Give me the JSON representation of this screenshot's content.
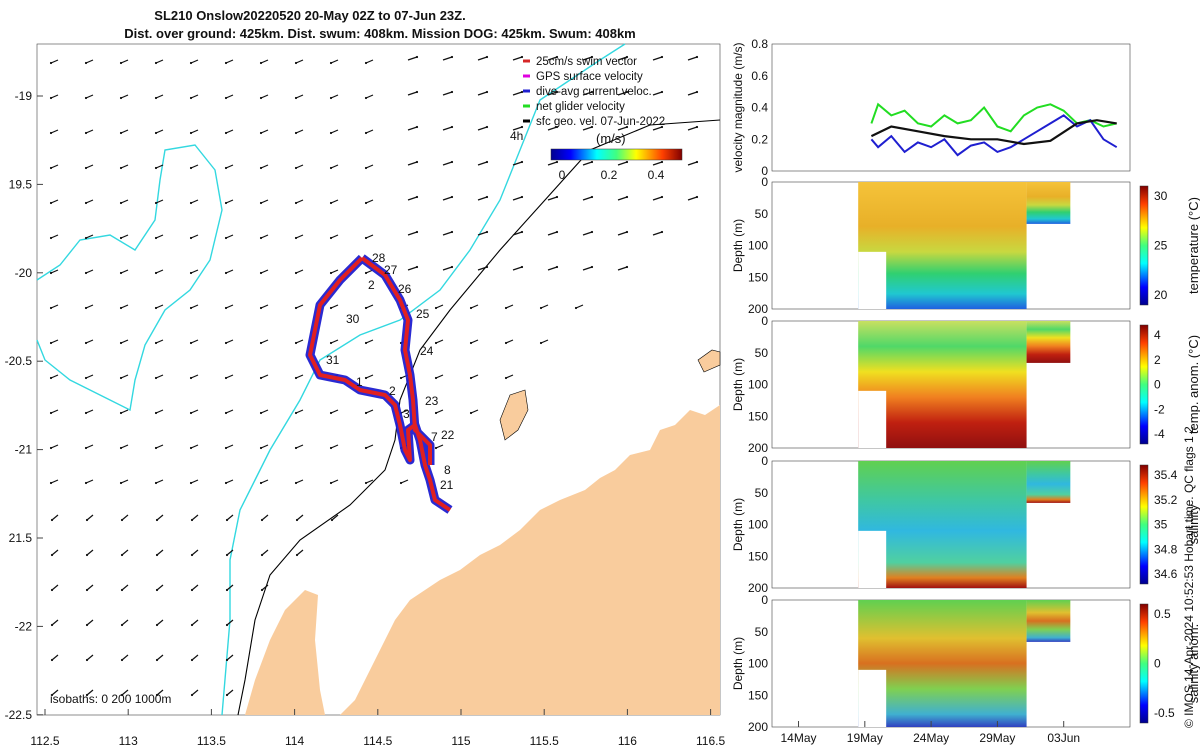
{
  "title_line1": "SL210 Onslow20220520 20-May 02Z to 07-Jun 23Z.",
  "title_line2": "Dist. over ground: 425km. Dist. swum: 408km. Mission DOG: 425km. Swum: 408km",
  "map": {
    "lon_ticks": [
      "112.5",
      "113",
      "113.5",
      "114",
      "114.5",
      "115",
      "115.5",
      "116",
      "116.5"
    ],
    "lat_ticks": [
      "-19",
      "19.5",
      "-20",
      "-20.5",
      "-21",
      "21.5",
      "-22",
      "-22.5"
    ],
    "legend": [
      "25cm/s swim vector",
      "GPS surface velocity",
      "dive-avg current veloc.",
      "net glider velocity",
      "sfc geo. vel. 07-Jun-2022"
    ],
    "legend_colors": [
      "#d62728",
      "#e000e0",
      "#1f1fd0",
      "#22dd22",
      "#000000"
    ],
    "colorbar_label": "(m/s)",
    "colorbar_ticks": [
      "0",
      "0.2",
      "0.4"
    ],
    "time_label": "4h",
    "isobaths_label": "isobaths: 0   200  1000m",
    "day_labels": [
      "28",
      "27",
      "2",
      "26",
      "30",
      "25",
      "24",
      "31",
      "1",
      "2",
      "23",
      "3",
      "22",
      "7",
      "8",
      "21"
    ]
  },
  "chart_data": [
    {
      "type": "line",
      "ylabel": "velocity magnitude (m/s)",
      "ylim": [
        0,
        0.8
      ],
      "yticks": [
        "0",
        "0.2",
        "0.4",
        "0.6",
        "0.8"
      ],
      "series": [
        {
          "name": "net glider velocity",
          "color": "#22dd22",
          "x": [
            19.5,
            20,
            21,
            22,
            23,
            24,
            25,
            26,
            27,
            28,
            29,
            30,
            31,
            32,
            33,
            34,
            35,
            36,
            37,
            38
          ],
          "values": [
            0.3,
            0.42,
            0.35,
            0.38,
            0.3,
            0.28,
            0.35,
            0.3,
            0.32,
            0.4,
            0.28,
            0.25,
            0.35,
            0.4,
            0.42,
            0.38,
            0.3,
            0.32,
            0.28,
            0.3
          ]
        },
        {
          "name": "dive-avg current veloc.",
          "color": "#1f1fd0",
          "x": [
            19.5,
            20,
            21,
            22,
            23,
            24,
            25,
            26,
            27,
            28,
            29,
            30,
            31,
            32,
            33,
            34,
            35,
            36,
            37,
            38
          ],
          "values": [
            0.2,
            0.15,
            0.22,
            0.12,
            0.18,
            0.15,
            0.2,
            0.1,
            0.16,
            0.18,
            0.12,
            0.15,
            0.2,
            0.25,
            0.3,
            0.35,
            0.28,
            0.32,
            0.2,
            0.15
          ]
        },
        {
          "name": "sfc geo. vel.",
          "color": "#111111",
          "x": [
            19.5,
            21,
            23,
            25,
            27,
            29,
            31,
            33,
            35,
            36.5,
            38
          ],
          "values": [
            0.22,
            0.28,
            0.25,
            0.22,
            0.2,
            0.2,
            0.17,
            0.19,
            0.3,
            0.32,
            0.3
          ]
        }
      ]
    },
    {
      "type": "heatmap",
      "ylabel": "Depth (m)",
      "colorbar_label": "temperature (°C)",
      "colorbar_ticks": [
        "30",
        "25",
        "20"
      ],
      "yticks": [
        "0",
        "50",
        "100",
        "150",
        "200"
      ]
    },
    {
      "type": "heatmap",
      "ylabel": "Depth (m)",
      "colorbar_label": "temp. anom. (°C)",
      "colorbar_ticks": [
        "4",
        "2",
        "0",
        "-2",
        "-4"
      ],
      "yticks": [
        "0",
        "50",
        "100",
        "150",
        "200"
      ]
    },
    {
      "type": "heatmap",
      "ylabel": "Depth (m)",
      "colorbar_label": "salinity",
      "colorbar_ticks": [
        "35.4",
        "35.2",
        "35",
        "34.8",
        "34.6"
      ],
      "yticks": [
        "0",
        "50",
        "100",
        "150",
        "200"
      ]
    },
    {
      "type": "heatmap",
      "ylabel": "Depth (m)",
      "colorbar_label": "salinity anom.",
      "colorbar_ticks": [
        "0.5",
        "0",
        "-0.5"
      ],
      "yticks": [
        "0",
        "50",
        "100",
        "150",
        "200"
      ]
    }
  ],
  "time_axis": {
    "ticks": [
      "14May",
      "19May",
      "24May",
      "29May",
      "03Jun"
    ]
  },
  "credit": "© IMOS 14-Apr-2024 10:52:53 Hobart time. QC flags 1  2"
}
